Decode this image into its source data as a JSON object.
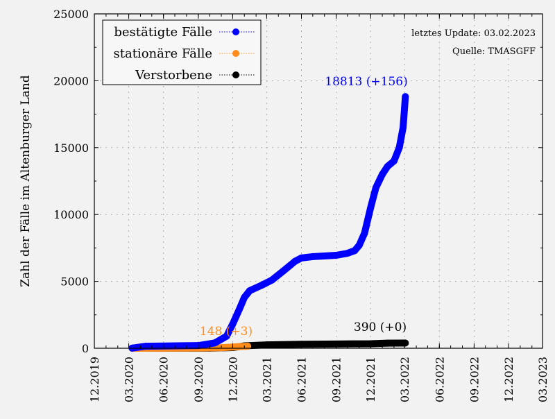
{
  "chart_data": {
    "type": "line",
    "title": "",
    "xlabel": "",
    "ylabel": "Zahl der Fälle im Altenburger Land",
    "ylim": [
      0,
      25000
    ],
    "xlim": [
      "2019-12-01",
      "2023-03-01"
    ],
    "yticks": [
      "0",
      "5000",
      "10000",
      "15000",
      "20000",
      "25000"
    ],
    "yticks_values": [
      0,
      5000,
      10000,
      15000,
      20000,
      25000
    ],
    "xticks": [
      "12.2019",
      "03.2020",
      "06.2020",
      "09.2020",
      "12.2020",
      "03.2021",
      "06.2021",
      "09.2021",
      "12.2021",
      "03.2022",
      "06.2022",
      "09.2022",
      "12.2022",
      "03.2023"
    ],
    "xticks_dates": [
      "2019-12-01",
      "2020-03-01",
      "2020-06-01",
      "2020-09-01",
      "2020-12-01",
      "2021-03-01",
      "2021-06-01",
      "2021-09-01",
      "2021-12-01",
      "2022-03-01",
      "2022-06-01",
      "2022-09-01",
      "2022-12-01",
      "2023-03-01"
    ],
    "grid": true,
    "legend_position": "top-left",
    "annotations": {
      "update": "letztes Update: 03.02.2023",
      "source": "Quelle: TMASGFF"
    },
    "series": [
      {
        "name": "bestätigte Fälle",
        "color": "#0000ff",
        "end_label": "18813 (+156)",
        "points": [
          [
            "2020-03-10",
            10
          ],
          [
            "2020-04-15",
            150
          ],
          [
            "2020-09-01",
            200
          ],
          [
            "2020-10-15",
            400
          ],
          [
            "2020-11-15",
            900
          ],
          [
            "2020-12-01",
            1800
          ],
          [
            "2020-12-20",
            3000
          ],
          [
            "2021-01-01",
            3800
          ],
          [
            "2021-01-15",
            4300
          ],
          [
            "2021-02-15",
            4700
          ],
          [
            "2021-03-15",
            5100
          ],
          [
            "2021-04-15",
            5800
          ],
          [
            "2021-05-15",
            6500
          ],
          [
            "2021-06-01",
            6750
          ],
          [
            "2021-07-01",
            6850
          ],
          [
            "2021-08-01",
            6900
          ],
          [
            "2021-09-01",
            6950
          ],
          [
            "2021-10-01",
            7100
          ],
          [
            "2021-10-20",
            7300
          ],
          [
            "2021-11-01",
            7700
          ],
          [
            "2021-11-15",
            8600
          ],
          [
            "2021-12-01",
            10500
          ],
          [
            "2021-12-15",
            12000
          ],
          [
            "2022-01-01",
            13000
          ],
          [
            "2022-01-15",
            13600
          ],
          [
            "2022-02-01",
            14000
          ],
          [
            "2022-02-15",
            15000
          ],
          [
            "2022-02-25",
            16500
          ],
          [
            "2022-03-01",
            18000
          ],
          [
            "2022-03-03",
            18813
          ]
        ]
      },
      {
        "name": "stationäre Fälle",
        "color": "#ff8c1a",
        "end_label": "148 (+3)",
        "points": [
          [
            "2020-03-10",
            0
          ],
          [
            "2020-09-01",
            10
          ],
          [
            "2020-11-01",
            40
          ],
          [
            "2020-12-01",
            90
          ],
          [
            "2020-12-20",
            130
          ],
          [
            "2021-01-10",
            148
          ]
        ]
      },
      {
        "name": "Verstorbene",
        "color": "#000000",
        "end_label": "390 (+0)",
        "points": [
          [
            "2020-03-10",
            0
          ],
          [
            "2020-10-01",
            5
          ],
          [
            "2020-12-01",
            50
          ],
          [
            "2021-01-01",
            180
          ],
          [
            "2021-03-01",
            250
          ],
          [
            "2021-06-01",
            300
          ],
          [
            "2021-09-01",
            320
          ],
          [
            "2021-12-01",
            340
          ],
          [
            "2022-01-15",
            380
          ],
          [
            "2022-03-03",
            390
          ]
        ]
      }
    ]
  }
}
